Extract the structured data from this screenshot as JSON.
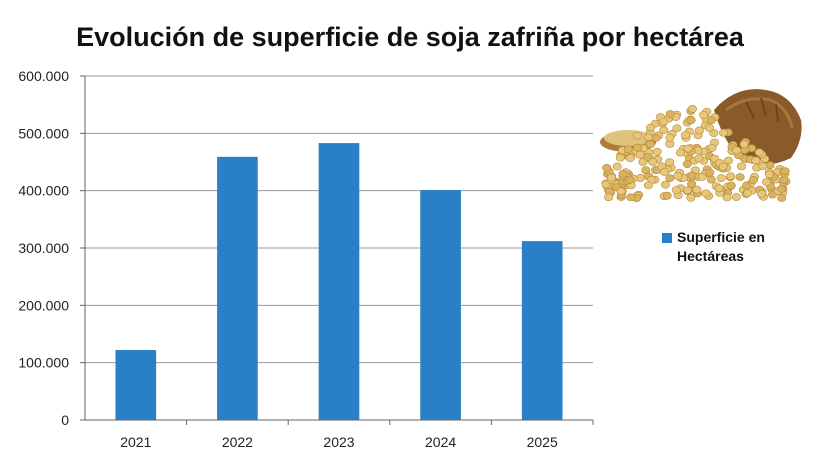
{
  "chart_data": {
    "type": "bar",
    "title": "Evolución de superficie de soja zafriña por hectárea",
    "categories": [
      "2021",
      "2022",
      "2023",
      "2024",
      "2025"
    ],
    "series": [
      {
        "name": "Superficie en Hectáreas",
        "values": [
          122000,
          459000,
          483000,
          401000,
          312000
        ],
        "color": "#2a80c7"
      }
    ],
    "ylim": [
      0,
      600000
    ],
    "yticks": [
      "0",
      "100.000",
      "200.000",
      "300.000",
      "400.000",
      "500.000",
      "600.000"
    ],
    "grid": true,
    "legend_position": "right"
  },
  "image": {
    "icon": "soybean-sack-image"
  }
}
